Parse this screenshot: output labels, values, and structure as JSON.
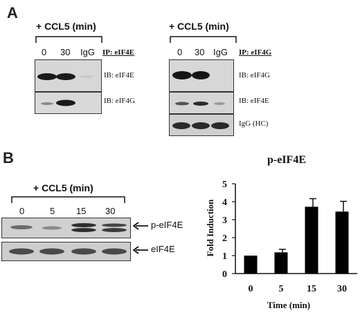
{
  "panel_a": {
    "letter": "A",
    "left_group": {
      "treatment": "+ CCL5 (min)",
      "lanes": [
        "0",
        "30",
        "IgG"
      ],
      "ip": "IP: eIF4E",
      "blots": [
        "IB: eIF4E",
        "IB: eIF4G"
      ]
    },
    "right_group": {
      "treatment": "+ CCL5 (min)",
      "lanes": [
        "0",
        "30",
        "IgG"
      ],
      "ip": "IP: eIF4G",
      "blots": [
        "IB: eIF4G",
        "IB: eIF4E",
        "IgG (HC)"
      ]
    }
  },
  "panel_b": {
    "letter": "B",
    "treatment": "+ CCL5 (min)",
    "lanes": [
      "0",
      "5",
      "15",
      "30"
    ],
    "blots": [
      "p-eIF4E",
      "eIF4E"
    ]
  },
  "chart_data": {
    "type": "bar",
    "title": "p-eIF4E",
    "xlabel": "Time (min)",
    "ylabel": "Fold Induction",
    "categories": [
      "0",
      "5",
      "15",
      "30"
    ],
    "values": [
      1.0,
      1.18,
      3.72,
      3.45
    ],
    "errors": [
      0,
      0.17,
      0.45,
      0.57
    ],
    "ylim": [
      0,
      5
    ],
    "yticks": [
      "0",
      "1",
      "2",
      "3",
      "4",
      "5"
    ],
    "bar_color": "#000000"
  }
}
